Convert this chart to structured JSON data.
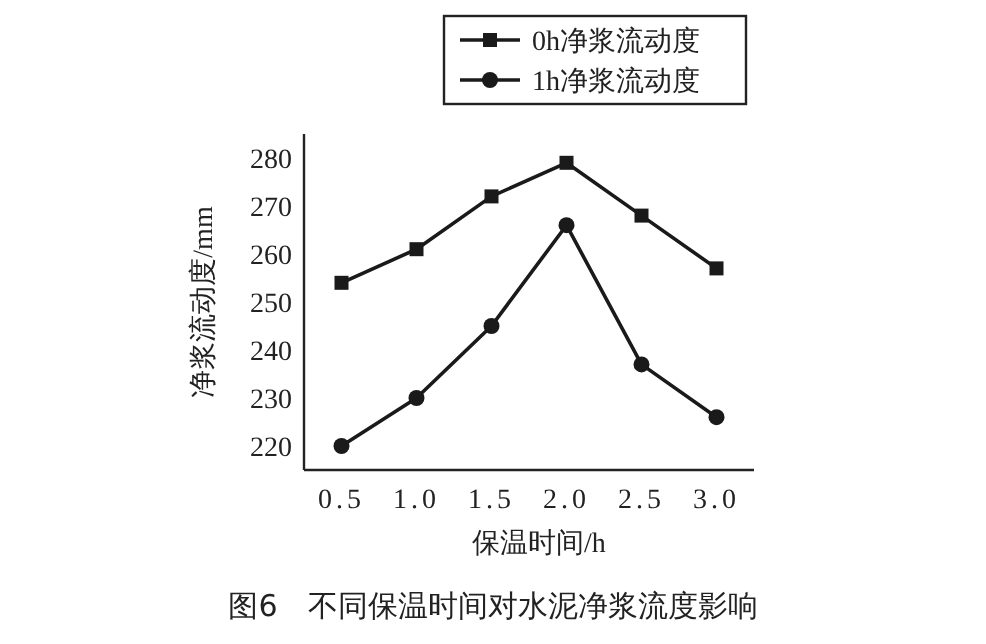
{
  "chart_data": {
    "type": "line",
    "xlabel": "保温时间/h",
    "ylabel": "净浆流动度/mm",
    "x": [
      0.5,
      1.0,
      1.5,
      2.0,
      2.5,
      3.0
    ],
    "series": [
      {
        "name": "0h净浆流动度",
        "color": "#1a1a1a",
        "marker": "square",
        "values": [
          254,
          261,
          272,
          279,
          268,
          257
        ]
      },
      {
        "name": "1h净浆流动度",
        "color": "#1a1a1a",
        "marker": "circle",
        "values": [
          220,
          230,
          245,
          266,
          237,
          226
        ]
      }
    ],
    "xlim": [
      0.25,
      3.25
    ],
    "ylim": [
      215,
      285
    ],
    "xticks": [
      0.5,
      {
        "value": 1,
        "label": "1.0"
      },
      1.5,
      {
        "value": 2,
        "label": "2.0"
      },
      2.5,
      {
        "value": 3,
        "label": "3.0"
      }
    ],
    "yticks": [
      220,
      230,
      240,
      250,
      260,
      270,
      280
    ],
    "legend": "top right",
    "line_style": "solid",
    "annotations": [
      "图6　不同保温时间对水泥净浆流度影响"
    ]
  }
}
